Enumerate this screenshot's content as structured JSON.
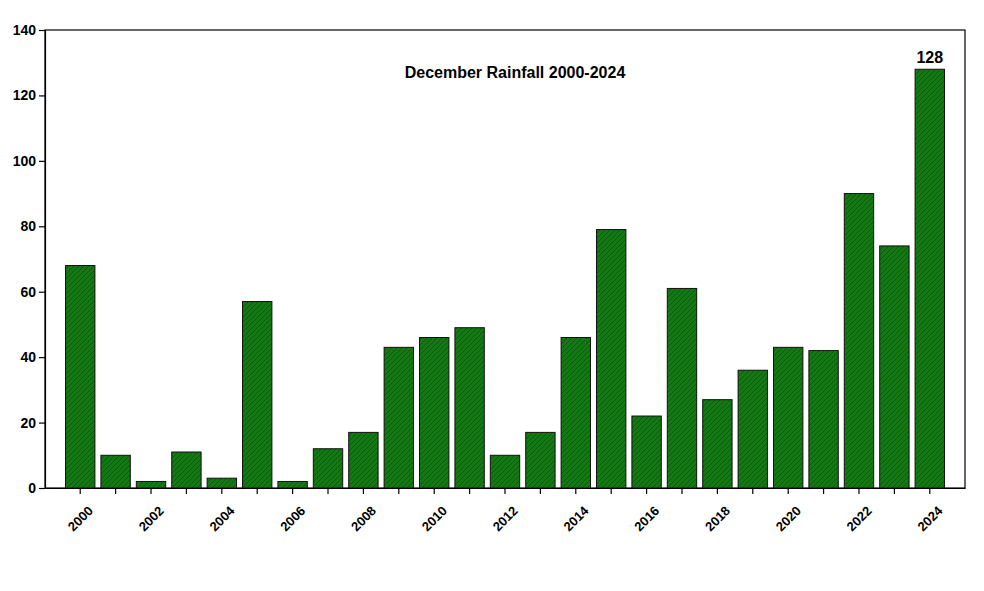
{
  "chart_data": {
    "type": "bar",
    "title": "December Rainfall 2000-2024",
    "categories": [
      "2000",
      null,
      "2002",
      null,
      "2004",
      null,
      "2006",
      null,
      "2008",
      null,
      "2010",
      null,
      "2012",
      null,
      "2014",
      null,
      "2016",
      null,
      "2018",
      null,
      "2020",
      null,
      "2022",
      null,
      "2024"
    ],
    "values": [
      68,
      10,
      2,
      11,
      3,
      57,
      2,
      12,
      17,
      43,
      46,
      49,
      10,
      17,
      46,
      79,
      22,
      61,
      27,
      36,
      43,
      42,
      90,
      74,
      128
    ],
    "color": "#137a13",
    "ylim": [
      0,
      140
    ],
    "yticks": [
      0,
      20,
      40,
      60,
      80,
      100,
      120,
      140
    ],
    "grid": false,
    "annotations": [
      {
        "text": "128",
        "index": 24
      }
    ]
  }
}
